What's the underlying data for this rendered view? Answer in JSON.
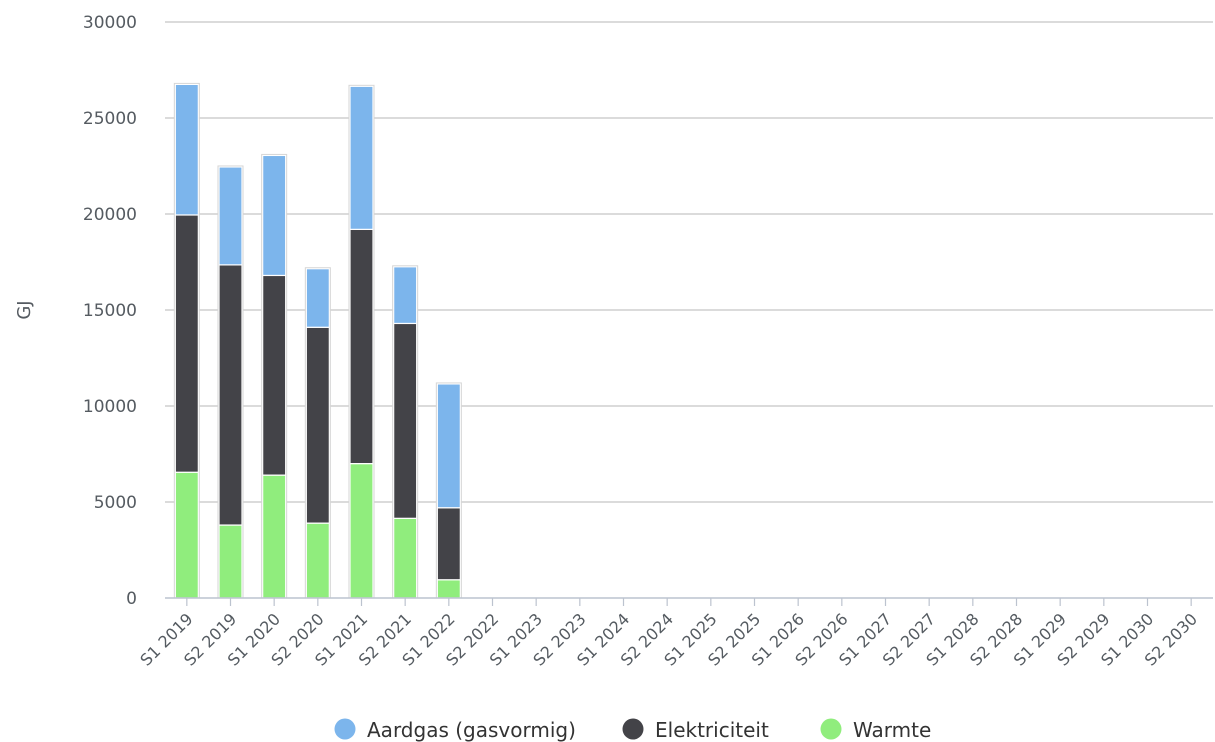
{
  "chart_data": {
    "type": "bar",
    "stacked": true,
    "categories": [
      "S1 2019",
      "S2 2019",
      "S1 2020",
      "S2 2020",
      "S1 2021",
      "S2 2021",
      "S1 2022",
      "S2 2022",
      "S1 2023",
      "S2 2023",
      "S1 2024",
      "S2 2024",
      "S1 2025",
      "S2 2025",
      "S1 2026",
      "S2 2026",
      "S1 2027",
      "S2 2027",
      "S1 2028",
      "S2 2028",
      "S1 2029",
      "S2 2029",
      "S1 2030",
      "S2 2030"
    ],
    "series": [
      {
        "name": "Warmte",
        "color": "#90ed7d",
        "values": [
          6550,
          3800,
          6400,
          3900,
          7000,
          4150,
          950,
          0,
          0,
          0,
          0,
          0,
          0,
          0,
          0,
          0,
          0,
          0,
          0,
          0,
          0,
          0,
          0,
          0
        ]
      },
      {
        "name": "Elektriciteit",
        "color": "#434348",
        "values": [
          13400,
          13550,
          10400,
          10200,
          12200,
          10150,
          3750,
          0,
          0,
          0,
          0,
          0,
          0,
          0,
          0,
          0,
          0,
          0,
          0,
          0,
          0,
          0,
          0,
          0
        ]
      },
      {
        "name": "Aardgas (gasvormig)",
        "color": "#7cb5ec",
        "values": [
          6800,
          5100,
          6250,
          3050,
          7450,
          2950,
          6450,
          0,
          0,
          0,
          0,
          0,
          0,
          0,
          0,
          0,
          0,
          0,
          0,
          0,
          0,
          0,
          0,
          0
        ]
      }
    ],
    "legend_order": [
      "Aardgas (gasvormig)",
      "Elektriciteit",
      "Warmte"
    ],
    "ylabel": "GJ",
    "xlabel": "",
    "ylim": [
      0,
      30000
    ],
    "yticks": [
      0,
      5000,
      10000,
      15000,
      20000,
      25000,
      30000
    ],
    "grid": true,
    "legend_position": "bottom-center"
  }
}
